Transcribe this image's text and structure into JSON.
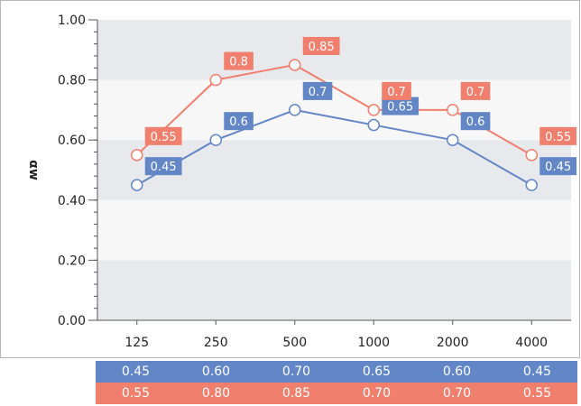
{
  "chart_data": {
    "type": "line",
    "ylabel": "αw",
    "categories": [
      "125",
      "250",
      "500",
      "1000",
      "2000",
      "4000"
    ],
    "ylim": [
      0.0,
      1.0
    ],
    "yticks": [
      "0.00",
      "0.20",
      "0.40",
      "0.60",
      "0.80",
      "1.00"
    ],
    "grid": "alternating horizontal bands",
    "series": [
      {
        "color": "#6386c7",
        "values": [
          0.45,
          0.6,
          0.7,
          0.65,
          0.6,
          0.45
        ],
        "labels": [
          "0.45",
          "0.6",
          "0.7",
          "0.65",
          "0.6",
          "0.45"
        ]
      },
      {
        "color": "#f07f6e",
        "values": [
          0.55,
          0.8,
          0.85,
          0.7,
          0.7,
          0.55
        ],
        "labels": [
          "0.55",
          "0.8",
          "0.85",
          "0.7",
          "0.7",
          "0.55"
        ]
      }
    ]
  },
  "table": {
    "rows": [
      {
        "color": "#6386c7",
        "cells": [
          "0.45",
          "0.60",
          "0.70",
          "0.65",
          "0.60",
          "0.45"
        ]
      },
      {
        "color": "#f07f6e",
        "cells": [
          "0.55",
          "0.80",
          "0.85",
          "0.70",
          "0.70",
          "0.55"
        ]
      }
    ]
  }
}
